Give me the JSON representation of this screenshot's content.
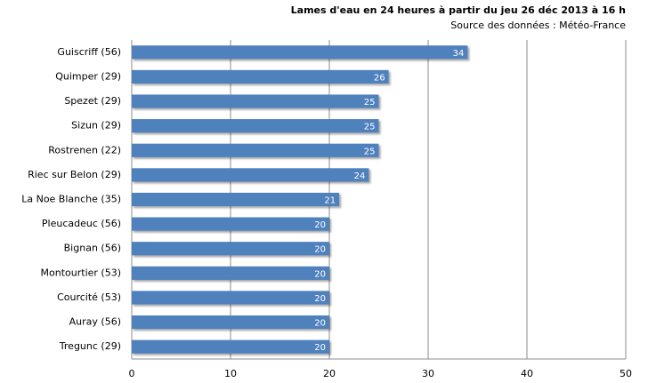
{
  "chart_data": {
    "type": "bar",
    "orientation": "horizontal",
    "title": "Lames d'eau  en 24 heures à partir du jeu 26 déc 2013 à 16 h",
    "subtitle": "Source des données : Météo-France",
    "categories": [
      "Guiscriff (56)",
      "Quimper (29)",
      "Spezet (29)",
      "Sizun (29)",
      "Rostrenen (22)",
      "Riec sur Belon (29)",
      "La Noe Blanche (35)",
      "Pleucadeuc (56)",
      "Bignan (56)",
      "Montourtier (53)",
      "Courcité (53)",
      "Auray (56)",
      "Tregunc (29)"
    ],
    "values": [
      34,
      26,
      25,
      25,
      25,
      24,
      21,
      20,
      20,
      20,
      20,
      20,
      20
    ],
    "color": "#4f81bd",
    "xlim": [
      0,
      50
    ],
    "xticks": [
      0,
      10,
      20,
      30,
      40,
      50
    ],
    "grid": true
  }
}
